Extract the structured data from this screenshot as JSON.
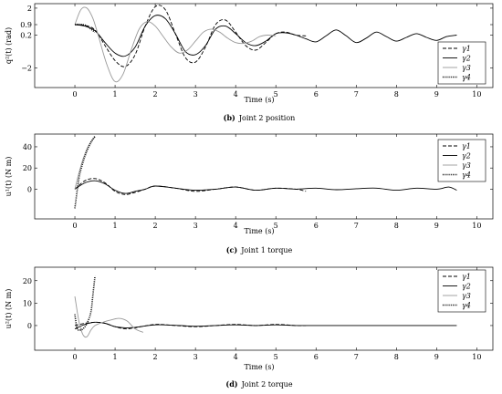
{
  "chart_data": [
    {
      "type": "line",
      "caption_num": "(b)",
      "caption_text": "Joint 2 position",
      "xlabel": "Time (s)",
      "ylabel": "q²(t) (rad)",
      "xlim": [
        -1,
        10.4
      ],
      "ylim": [
        -3.3,
        2.3
      ],
      "xticks": [
        0,
        1,
        2,
        3,
        4,
        5,
        6,
        7,
        8,
        9,
        10
      ],
      "xtick_labels": [
        "0",
        "1",
        "2",
        "3",
        "4",
        "5",
        "6",
        "7",
        "8",
        "9",
        "10"
      ],
      "yticks": [
        2,
        0.9,
        0.2,
        -2
      ],
      "ytick_labels": [
        "2",
        "0.9",
        "0.2",
        "−2"
      ],
      "grid": false,
      "legend_position": "bottom-right",
      "series": [
        {
          "name": "γ1",
          "style": "dashed",
          "color": "#000000",
          "x": [
            0,
            0.25,
            0.5,
            0.75,
            1,
            1.25,
            1.5,
            1.75,
            2,
            2.25,
            2.5,
            2.75,
            3,
            3.25,
            3.5,
            3.75,
            4,
            4.25,
            4.5,
            4.75,
            5,
            5.25,
            5.5,
            5.75
          ],
          "y": [
            0.9,
            0.85,
            0.55,
            -0.5,
            -1.5,
            -1.9,
            -1.1,
            0.8,
            2.1,
            1.9,
            0.3,
            -1.3,
            -1.6,
            -0.6,
            0.9,
            1.2,
            0.4,
            -0.5,
            -0.8,
            -0.3,
            0.3,
            0.4,
            0.2,
            0.15
          ]
        },
        {
          "name": "γ2",
          "style": "solid",
          "color": "#000000",
          "x": [
            0,
            0.25,
            0.5,
            0.75,
            1,
            1.25,
            1.5,
            1.75,
            2,
            2.25,
            2.5,
            2.75,
            3,
            3.25,
            3.5,
            3.75,
            4,
            4.25,
            4.5,
            4.75,
            5,
            5.25,
            5.5,
            5.75,
            6,
            6.25,
            6.5,
            6.75,
            7,
            7.25,
            7.5,
            7.75,
            8,
            8.25,
            8.5,
            8.75,
            9,
            9.25,
            9.5
          ],
          "y": [
            0.9,
            0.8,
            0.5,
            -0.3,
            -1.0,
            -1.2,
            -0.6,
            0.8,
            1.5,
            1.3,
            0.3,
            -0.9,
            -1.1,
            -0.5,
            0.6,
            0.8,
            0.3,
            -0.3,
            -0.5,
            -0.2,
            0.3,
            0.35,
            0.2,
            -0.05,
            -0.25,
            0.15,
            0.55,
            0.15,
            -0.3,
            0.0,
            0.4,
            0.1,
            -0.2,
            0.05,
            0.3,
            0.05,
            -0.15,
            0.1,
            0.2
          ]
        },
        {
          "name": "γ3",
          "style": "solid",
          "color": "#999999",
          "x": [
            0,
            0.15,
            0.3,
            0.45,
            0.6,
            0.8,
            1,
            1.2,
            1.4,
            1.6,
            1.8,
            2,
            2.2,
            2.4,
            2.6,
            2.8,
            3,
            3.2,
            3.4,
            3.6,
            3.8,
            4,
            4.2,
            4.4,
            4.6,
            4.8,
            5
          ],
          "y": [
            0.9,
            1.9,
            2.0,
            1.3,
            0.0,
            -1.8,
            -2.9,
            -2.4,
            -0.8,
            0.6,
            1.1,
            0.8,
            0.1,
            -0.6,
            -1.0,
            -0.8,
            -0.2,
            0.4,
            0.6,
            0.4,
            0.0,
            -0.3,
            -0.35,
            -0.2,
            0.1,
            0.2,
            0.15
          ]
        },
        {
          "name": "γ4",
          "style": "dotted",
          "color": "#000000",
          "x": [
            0,
            0.1,
            0.2,
            0.3,
            0.4,
            0.5
          ],
          "y": [
            0.9,
            0.92,
            0.9,
            0.8,
            0.6,
            0.4
          ]
        }
      ]
    },
    {
      "type": "line",
      "caption_num": "(c)",
      "caption_text": "Joint 1 torque",
      "xlabel": "Time (s)",
      "ylabel": "u¹(t) (N m)",
      "xlim": [
        -1,
        10.4
      ],
      "ylim": [
        -28,
        52
      ],
      "xticks": [
        0,
        1,
        2,
        3,
        4,
        5,
        6,
        7,
        8,
        9,
        10
      ],
      "xtick_labels": [
        "0",
        "1",
        "2",
        "3",
        "4",
        "5",
        "6",
        "7",
        "8",
        "9",
        "10"
      ],
      "yticks": [
        40,
        20,
        0
      ],
      "ytick_labels": [
        "40",
        "20",
        "0"
      ],
      "grid": false,
      "legend_position": "top-right",
      "series": [
        {
          "name": "γ1",
          "style": "dashed",
          "color": "#000000",
          "x": [
            0,
            0.25,
            0.5,
            0.75,
            1,
            1.25,
            1.5,
            1.75,
            2,
            2.5,
            3,
            3.5,
            4,
            4.5,
            5,
            5.5,
            5.75
          ],
          "y": [
            0,
            8,
            10,
            6,
            -2,
            -5,
            -3,
            0,
            3,
            1,
            -2,
            0,
            2,
            -1,
            1,
            0,
            -2
          ]
        },
        {
          "name": "γ2",
          "style": "solid",
          "color": "#000000",
          "x": [
            0,
            0.25,
            0.5,
            0.75,
            1,
            1.25,
            1.5,
            1.75,
            2,
            2.5,
            3,
            3.5,
            4,
            4.5,
            5,
            5.5,
            6,
            6.5,
            7,
            7.5,
            8,
            8.5,
            9,
            9.3,
            9.5
          ],
          "y": [
            0,
            6,
            8,
            5,
            -1,
            -4,
            -2,
            0,
            3,
            1,
            -1,
            0,
            2,
            -1,
            1,
            0,
            1,
            -0.5,
            0.5,
            1,
            -1,
            1,
            0,
            2,
            -1
          ]
        },
        {
          "name": "γ3",
          "style": "solid",
          "color": "#999999",
          "x": [
            0,
            0.1,
            0.2,
            0.3,
            0.4,
            0.5
          ],
          "y": [
            0,
            15,
            28,
            38,
            45,
            49
          ]
        },
        {
          "name": "γ4",
          "style": "dotted",
          "color": "#000000",
          "x": [
            0,
            0.1,
            0.2,
            0.3,
            0.4,
            0.5
          ],
          "y": [
            -18,
            10,
            25,
            36,
            44,
            50
          ]
        }
      ]
    },
    {
      "type": "line",
      "caption_num": "(d)",
      "caption_text": "Joint 2 torque",
      "xlabel": "Time (s)",
      "ylabel": "u²(t) (N m)",
      "xlim": [
        -1,
        10.4
      ],
      "ylim": [
        -11,
        26
      ],
      "xticks": [
        0,
        1,
        2,
        3,
        4,
        5,
        6,
        7,
        8,
        9,
        10
      ],
      "xtick_labels": [
        "0",
        "1",
        "2",
        "3",
        "4",
        "5",
        "6",
        "7",
        "8",
        "9",
        "10"
      ],
      "yticks": [
        20,
        10,
        0
      ],
      "ytick_labels": [
        "20",
        "10",
        "0"
      ],
      "grid": false,
      "legend_position": "top-right",
      "series": [
        {
          "name": "γ1",
          "style": "dashed",
          "color": "#000000",
          "x": [
            0,
            0.25,
            0.5,
            0.75,
            1,
            1.25,
            1.5,
            2,
            2.5,
            3,
            3.5,
            4,
            4.5,
            5,
            5.5,
            5.75
          ],
          "y": [
            0,
            1,
            1.5,
            1,
            -0.5,
            -1.5,
            -1,
            0.5,
            0,
            -0.5,
            0,
            0.5,
            0,
            0.5,
            0,
            0
          ]
        },
        {
          "name": "γ2",
          "style": "solid",
          "color": "#000000",
          "x": [
            0,
            0.25,
            0.5,
            0.75,
            1,
            1.25,
            1.5,
            2,
            2.5,
            3,
            3.5,
            4,
            4.5,
            5,
            5.5,
            6,
            7,
            8,
            9,
            9.5
          ],
          "y": [
            -1.5,
            0.5,
            1.5,
            1,
            -0.5,
            -1,
            -0.8,
            0.3,
            0.1,
            -0.3,
            0,
            0.3,
            0,
            0.3,
            0,
            0,
            0,
            0,
            0,
            0
          ]
        },
        {
          "name": "γ3",
          "style": "solid",
          "color": "#999999",
          "x": [
            0,
            0.1,
            0.2,
            0.3,
            0.4,
            0.5,
            0.7,
            0.9,
            1.1,
            1.3,
            1.5,
            1.7
          ],
          "y": [
            13,
            2,
            -4,
            -5,
            -2,
            0,
            1.5,
            2.5,
            3.2,
            2,
            -1.5,
            -3
          ]
        },
        {
          "name": "γ4",
          "style": "dotted",
          "color": "#000000",
          "x": [
            0,
            0.05,
            0.1,
            0.2,
            0.3,
            0.4,
            0.45,
            0.5
          ],
          "y": [
            5,
            -1,
            -2,
            -1.5,
            1,
            6,
            14,
            22
          ]
        }
      ]
    }
  ]
}
